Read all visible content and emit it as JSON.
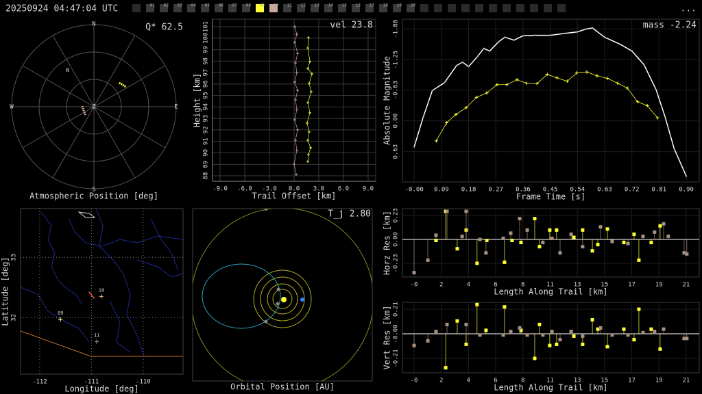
{
  "header": {
    "timestamp": "20250924 04:47:04 UTC",
    "cameras": [
      "01",
      "02",
      "03",
      "04",
      "05",
      "06",
      "07",
      "08",
      "09",
      "10",
      "11",
      "12",
      "13",
      "14",
      "15",
      "16",
      "17",
      "18",
      "19",
      "20"
    ],
    "camera_colors": [
      "#3a3a3a",
      "#3a3a3a",
      "#3a3a3a",
      "#3a3a3a",
      "#3a3a3a",
      "#3a3a3a",
      "#3a3a3a",
      "#3a3a3a",
      "#ffff33",
      "#c8a898",
      "#3a3a3a",
      "#3a3a3a",
      "#3a3a3a",
      "#3a3a3a",
      "#3a3a3a",
      "#3a3a3a",
      "#3a3a3a",
      "#3a3a3a",
      "#3a3a3a",
      "#3a3a3a"
    ],
    "menu": "..."
  },
  "chart_data": [
    {
      "type": "polar",
      "title": "Atmospheric Position [deg]",
      "corner_label": "Q* 62.5",
      "directions": [
        "N",
        "E",
        "S",
        "W"
      ],
      "zenith_label": "Z",
      "marker": {
        "label": "R",
        "az": 324,
        "zen": 49
      },
      "series": [
        {
          "color": "#ffff33",
          "az": [
            46.6,
            52,
            57.8
          ],
          "zen": [
            38,
            39.5,
            41
          ]
        },
        {
          "color": "#c8a090",
          "az": [
            273,
            250,
            225
          ],
          "zen": [
            13,
            12,
            13
          ]
        }
      ]
    },
    {
      "type": "scatter",
      "xlabel": "Trail Offset [km]",
      "ylabel": "Height [km]",
      "corner_label": "vel 23.8",
      "xlim": [
        -9.92,
        9.92
      ],
      "ylim": [
        87.52,
        101.66
      ],
      "grid": true,
      "xticks": [
        {
          "value": -9,
          "label": "-9.0"
        },
        {
          "value": -6,
          "label": "-6.0"
        },
        {
          "value": -3,
          "label": "-3.0"
        },
        {
          "value": 0,
          "label": "0.0"
        },
        {
          "value": 3,
          "label": "3.0"
        },
        {
          "value": 6,
          "label": "6.0"
        },
        {
          "value": 9,
          "label": "9.0"
        }
      ],
      "yticks": [
        88,
        89,
        90,
        91,
        92,
        93,
        94,
        95,
        96,
        97,
        98,
        99,
        100,
        101
      ],
      "series": [
        {
          "color": "#ffff33",
          "x": [
            1.75,
            1.67,
            1.92,
            1.67,
            2.17,
            1.83,
            2.08,
            1.67,
            1.92,
            1.58,
            1.83,
            1.67,
            2.0,
            1.75,
            1.67
          ],
          "values": [
            100.05,
            99.15,
            97.96,
            97.36,
            96.88,
            96.05,
            95.33,
            94.38,
            93.49,
            92.59,
            91.82,
            91.1,
            90.44,
            89.85,
            89.25
          ]
        },
        {
          "color": "#c8a090",
          "x": [
            0.08,
            0.33,
            0.08,
            0.42,
            0.17,
            0.33,
            0.08,
            0.42,
            0.17,
            0.33,
            0.08,
            0.42,
            0.17,
            0.33,
            0.0,
            0.25
          ],
          "values": [
            101.0,
            100.34,
            99.63,
            98.67,
            97.84,
            97.0,
            96.17,
            95.45,
            94.62,
            93.78,
            92.89,
            92.0,
            91.1,
            90.21,
            89.01,
            88.12
          ]
        }
      ]
    },
    {
      "type": "line",
      "xlabel": "Frame Time [s]",
      "ylabel": "Absolute Magnitude",
      "corner_label": "mass -2.24",
      "xlim": [
        -0.039,
        0.943
      ],
      "ylim": [
        1.25,
        -2.08
      ],
      "grid": true,
      "xticks": [
        {
          "value": 0,
          "label": "-0.00"
        },
        0.09,
        0.18,
        0.27,
        0.36,
        0.45,
        0.54,
        0.63,
        0.72,
        0.81,
        {
          "value": 0.9,
          "label": "0.90"
        }
      ],
      "yticks": [
        -1.88,
        -1.25,
        -0.63,
        {
          "value": 0,
          "label": "0.00"
        },
        0.63
      ],
      "series": [
        {
          "color": "#ffffff",
          "marker": "dot",
          "x": [
            0.0,
            0.03,
            0.06,
            0.1,
            0.14,
            0.16,
            0.18,
            0.21,
            0.23,
            0.25,
            0.28,
            0.3,
            0.33,
            0.36,
            0.4,
            0.45,
            0.5,
            0.54,
            0.57,
            0.59,
            0.63,
            0.68,
            0.72,
            0.76,
            0.8,
            0.83,
            0.86,
            0.9
          ],
          "values": [
            0.53,
            -0.08,
            -0.62,
            -0.78,
            -1.13,
            -1.2,
            -1.11,
            -1.32,
            -1.48,
            -1.43,
            -1.62,
            -1.71,
            -1.65,
            -1.74,
            -1.75,
            -1.75,
            -1.79,
            -1.82,
            -1.88,
            -1.9,
            -1.71,
            -1.57,
            -1.43,
            -1.15,
            -0.64,
            -0.08,
            0.57,
            1.13
          ]
        },
        {
          "color": "#ffff33",
          "marker": "plus",
          "x": [
            0.073,
            0.107,
            0.138,
            0.172,
            0.206,
            0.24,
            0.274,
            0.306,
            0.34,
            0.372,
            0.406,
            0.44,
            0.472,
            0.506,
            0.538,
            0.571,
            0.605,
            0.639,
            0.673,
            0.705,
            0.739,
            0.771,
            0.805
          ],
          "values": [
            0.41,
            0.04,
            -0.13,
            -0.27,
            -0.48,
            -0.57,
            -0.74,
            -0.74,
            -0.84,
            -0.77,
            -0.76,
            -0.95,
            -0.88,
            -0.81,
            -0.98,
            -1.0,
            -0.92,
            -0.87,
            -0.77,
            -0.67,
            -0.39,
            -0.31,
            -0.06
          ]
        }
      ]
    },
    {
      "type": "map",
      "xlabel": "Longitude [deg]",
      "ylabel": "Latitude [deg]",
      "xlim": [
        -112.37,
        -109.23
      ],
      "ylim": [
        31.06,
        33.81
      ],
      "grid": true,
      "xticks": [
        -112,
        -111,
        -110
      ],
      "yticks": [
        32,
        33
      ],
      "trail": {
        "color": "#ff5040",
        "lon": [
          -111.05,
          -110.95
        ],
        "lat": [
          32.43,
          32.32
        ]
      },
      "stations": [
        {
          "label": "09",
          "lon": -111.6,
          "lat": 31.97,
          "color": "#ffff66"
        },
        {
          "label": "10",
          "lon": -110.81,
          "lat": 32.35,
          "color": "#e8a070"
        },
        {
          "label": "11",
          "lon": -110.9,
          "lat": 31.6,
          "color": "#888888"
        }
      ]
    },
    {
      "type": "orbit",
      "title": "Orbital Position [AU]",
      "corner_label": "T_j 2.80"
    },
    {
      "type": "stem",
      "xlabel": "Length Along Trail [km]",
      "ylabel": "Horz Res [km]",
      "xlim": [
        -0.9,
        22.01
      ],
      "ylim": [
        -0.362,
        0.296
      ],
      "grid": true,
      "xticks": [
        {
          "value": 0,
          "label": "-0"
        },
        {
          "value": 2.1,
          "label": "2"
        },
        {
          "value": 4.2,
          "label": "4"
        },
        {
          "value": 6.3,
          "label": "6"
        },
        {
          "value": 8.4,
          "label": "8"
        },
        {
          "value": 10.5,
          "label": "11"
        },
        {
          "value": 12.6,
          "label": "13"
        },
        {
          "value": 14.7,
          "label": "15"
        },
        {
          "value": 16.8,
          "label": "17"
        },
        {
          "value": 18.9,
          "label": "19"
        },
        {
          "value": 21.0,
          "label": "21"
        }
      ],
      "yticks": [
        -0.23,
        {
          "value": 0,
          "label": "0.00"
        },
        0.23
      ],
      "series": [
        {
          "color": "#ffff33",
          "x": [
            1.69,
            2.44,
            3.33,
            4.02,
            4.86,
            5.61,
            6.98,
            7.56,
            8.25,
            9.31,
            9.68,
            10.47,
            11.0,
            12.33,
            13.01,
            13.76,
            14.18,
            14.92,
            16.19,
            16.98,
            17.35,
            18.3,
            18.99
          ],
          "values": [
            -0.01,
            0.27,
            -0.09,
            0.09,
            -0.23,
            -0.01,
            -0.22,
            -0.01,
            -0.03,
            0.2,
            -0.07,
            0.09,
            0.09,
            0.02,
            0.09,
            -0.11,
            -0.05,
            0.1,
            -0.03,
            0.05,
            -0.2,
            -0.03,
            0.13
          ]
        },
        {
          "color": "#a89080",
          "x": [
            0,
            1.06,
            1.69,
            2.54,
            3.71,
            4.02,
            5.08,
            5.55,
            6.88,
            7.46,
            8.15,
            8.73,
            9.94,
            10.64,
            11.27,
            12.12,
            13.01,
            14.39,
            15.29,
            16.51,
            17.67,
            18.56,
            19.26,
            19.62,
            20.84,
            21.05
          ],
          "values": [
            -0.32,
            -0.2,
            0.04,
            0.27,
            0.03,
            0.27,
            0.0,
            -0.13,
            0.01,
            0.06,
            0.2,
            0.09,
            -0.03,
            0.01,
            -0.13,
            0.05,
            -0.07,
            0.12,
            -0.02,
            -0.04,
            0.03,
            0.07,
            0.15,
            0.03,
            -0.13,
            -0.14
          ]
        }
      ]
    },
    {
      "type": "stem",
      "xlabel": "Length Along Trail [km]",
      "ylabel": "Vert Res [km]",
      "xlim": [
        -0.9,
        22.01
      ],
      "ylim": [
        -0.333,
        0.269
      ],
      "grid": true,
      "xticks": [
        {
          "value": 0,
          "label": "-0"
        },
        {
          "value": 2.1,
          "label": "2"
        },
        {
          "value": 4.2,
          "label": "4"
        },
        {
          "value": 6.3,
          "label": "6"
        },
        {
          "value": 8.4,
          "label": "8"
        },
        {
          "value": 10.5,
          "label": "11"
        },
        {
          "value": 12.6,
          "label": "13"
        },
        {
          "value": 14.7,
          "label": "15"
        },
        {
          "value": 16.8,
          "label": "17"
        },
        {
          "value": 18.9,
          "label": "19"
        },
        {
          "value": 21.0,
          "label": "21"
        }
      ],
      "yticks": [
        -0.21,
        {
          "value": 0,
          "label": "-0.00"
        },
        0.21
      ],
      "series": [
        {
          "color": "#ffff33",
          "x": [
            2.44,
            3.33,
            4.02,
            4.86,
            5.55,
            6.98,
            8.25,
            9.31,
            9.68,
            10.47,
            11.0,
            12.33,
            13.01,
            13.76,
            14.18,
            14.92,
            16.19,
            16.98,
            17.35,
            18.3,
            18.99
          ],
          "values": [
            -0.29,
            0.11,
            -0.09,
            0.25,
            0.03,
            0.23,
            0.03,
            -0.21,
            0.08,
            -0.1,
            -0.09,
            -0.02,
            -0.09,
            0.12,
            0.04,
            -0.11,
            0.04,
            -0.05,
            0.21,
            0.04,
            -0.13
          ]
        },
        {
          "color": "#a89080",
          "x": [
            0,
            1.06,
            1.69,
            2.54,
            4.02,
            5.08,
            6.88,
            7.46,
            8.15,
            8.73,
            9.94,
            10.64,
            11.27,
            12.12,
            13.01,
            14.39,
            15.29,
            16.51,
            17.67,
            18.56,
            19.26,
            20.84,
            21.05
          ],
          "values": [
            -0.1,
            -0.06,
            0.02,
            0.08,
            0.08,
            -0.01,
            -0.01,
            0.02,
            0.05,
            -0.01,
            -0.01,
            0.02,
            -0.05,
            0.02,
            -0.02,
            0.05,
            -0.01,
            -0.01,
            0.01,
            0.02,
            0.04,
            -0.04,
            -0.04
          ]
        }
      ]
    }
  ]
}
